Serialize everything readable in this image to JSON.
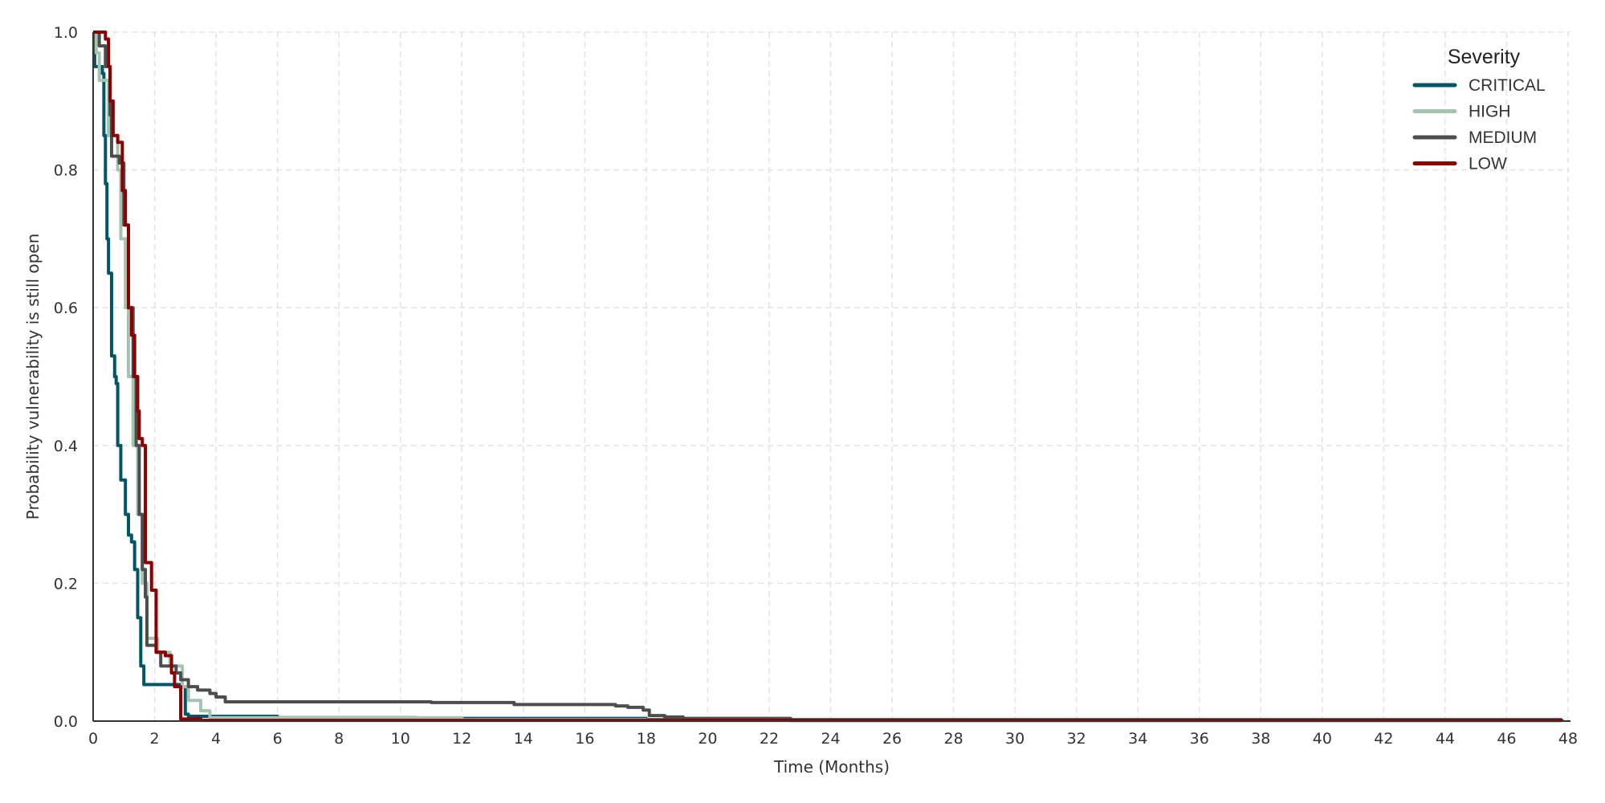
{
  "chart_data": {
    "type": "line",
    "step": true,
    "title": "",
    "xlabel": "Time (Months)",
    "ylabel": "Probability vulnerability is still open",
    "xlim": [
      0,
      48
    ],
    "ylim": [
      0,
      1.0
    ],
    "xticks": [
      "0",
      "2",
      "4",
      "6",
      "8",
      "10",
      "12",
      "14",
      "16",
      "18",
      "20",
      "22",
      "24",
      "26",
      "28",
      "30",
      "32",
      "34",
      "36",
      "38",
      "40",
      "42",
      "44",
      "46",
      "48"
    ],
    "yticks": [
      "0.0",
      "0.2",
      "0.4",
      "0.6",
      "0.8",
      "1.0"
    ],
    "grid": true,
    "legend": {
      "title": "Severity",
      "placement": "top-right"
    },
    "series": [
      {
        "name": "CRITICAL",
        "color": "#005566",
        "points": [
          [
            0,
            1.0
          ],
          [
            0.05,
            0.95
          ],
          [
            0.3,
            0.94
          ],
          [
            0.35,
            0.85
          ],
          [
            0.4,
            0.78
          ],
          [
            0.45,
            0.7
          ],
          [
            0.5,
            0.65
          ],
          [
            0.6,
            0.53
          ],
          [
            0.7,
            0.5
          ],
          [
            0.75,
            0.49
          ],
          [
            0.8,
            0.4
          ],
          [
            0.9,
            0.35
          ],
          [
            1.05,
            0.3
          ],
          [
            1.15,
            0.27
          ],
          [
            1.25,
            0.26
          ],
          [
            1.35,
            0.22
          ],
          [
            1.45,
            0.15
          ],
          [
            1.55,
            0.08
          ],
          [
            1.65,
            0.053
          ],
          [
            2.85,
            0.05
          ],
          [
            3.0,
            0.01
          ],
          [
            3.1,
            0.007
          ],
          [
            6.0,
            0.005
          ],
          [
            10.5,
            0.004
          ],
          [
            18.0,
            0.002
          ],
          [
            47.8,
            0.002
          ]
        ]
      },
      {
        "name": "HIGH",
        "color": "#a3c4b0",
        "points": [
          [
            0,
            1.0
          ],
          [
            0.1,
            0.97
          ],
          [
            0.2,
            0.93
          ],
          [
            0.5,
            0.85
          ],
          [
            0.8,
            0.8
          ],
          [
            0.9,
            0.7
          ],
          [
            1.05,
            0.6
          ],
          [
            1.15,
            0.5
          ],
          [
            1.3,
            0.4
          ],
          [
            1.45,
            0.3
          ],
          [
            1.6,
            0.2
          ],
          [
            1.75,
            0.12
          ],
          [
            2.1,
            0.1
          ],
          [
            2.5,
            0.08
          ],
          [
            2.9,
            0.05
          ],
          [
            3.1,
            0.03
          ],
          [
            3.5,
            0.015
          ],
          [
            3.8,
            0.005
          ],
          [
            12.0,
            0.002
          ],
          [
            18.0,
            0.001
          ],
          [
            47.8,
            0.001
          ]
        ]
      },
      {
        "name": "MEDIUM",
        "color": "#4d4d4d",
        "points": [
          [
            0,
            1.0
          ],
          [
            0.2,
            0.98
          ],
          [
            0.4,
            0.95
          ],
          [
            0.55,
            0.88
          ],
          [
            0.6,
            0.82
          ],
          [
            0.85,
            0.81
          ],
          [
            1.0,
            0.72
          ],
          [
            1.15,
            0.6
          ],
          [
            1.3,
            0.5
          ],
          [
            1.4,
            0.4
          ],
          [
            1.5,
            0.3
          ],
          [
            1.6,
            0.22
          ],
          [
            1.7,
            0.18
          ],
          [
            1.75,
            0.11
          ],
          [
            2.05,
            0.1
          ],
          [
            2.2,
            0.08
          ],
          [
            2.7,
            0.07
          ],
          [
            2.85,
            0.06
          ],
          [
            3.1,
            0.05
          ],
          [
            3.4,
            0.045
          ],
          [
            3.8,
            0.04
          ],
          [
            4.0,
            0.035
          ],
          [
            4.3,
            0.028
          ],
          [
            11.0,
            0.027
          ],
          [
            13.7,
            0.024
          ],
          [
            17.0,
            0.022
          ],
          [
            17.4,
            0.02
          ],
          [
            17.9,
            0.016
          ],
          [
            18.1,
            0.008
          ],
          [
            18.6,
            0.006
          ],
          [
            19.2,
            0.004
          ],
          [
            22.7,
            0.001
          ],
          [
            47.8,
            0.001
          ]
        ]
      },
      {
        "name": "LOW",
        "color": "#8b0000",
        "points": [
          [
            0,
            1.0
          ],
          [
            0.4,
            0.99
          ],
          [
            0.5,
            0.95
          ],
          [
            0.55,
            0.9
          ],
          [
            0.65,
            0.85
          ],
          [
            0.8,
            0.84
          ],
          [
            0.95,
            0.77
          ],
          [
            1.05,
            0.72
          ],
          [
            1.15,
            0.6
          ],
          [
            1.25,
            0.56
          ],
          [
            1.35,
            0.5
          ],
          [
            1.45,
            0.45
          ],
          [
            1.5,
            0.41
          ],
          [
            1.6,
            0.4
          ],
          [
            1.7,
            0.23
          ],
          [
            1.9,
            0.19
          ],
          [
            2.05,
            0.1
          ],
          [
            2.35,
            0.095
          ],
          [
            2.55,
            0.07
          ],
          [
            2.65,
            0.05
          ],
          [
            2.85,
            0.003
          ],
          [
            3.5,
            0.001
          ],
          [
            47.8,
            0.0
          ]
        ]
      }
    ]
  }
}
